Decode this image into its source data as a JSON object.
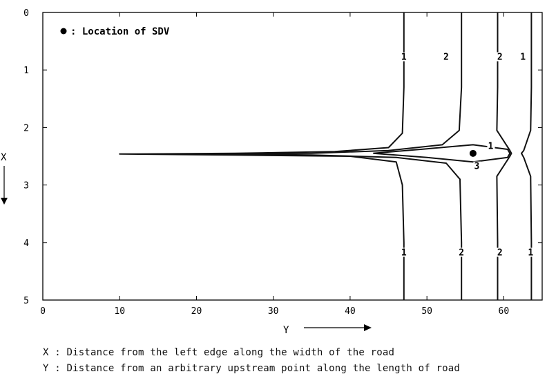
{
  "chart_data": {
    "type": "contour",
    "legend": {
      "marker": "filled-circle",
      "label": ": Location of SDV",
      "placement": "top-left"
    },
    "xlabel": "Y",
    "ylabel": "X",
    "x_ticks": [
      0,
      10,
      20,
      30,
      40,
      50,
      60
    ],
    "y_ticks": [
      0,
      1,
      2,
      3,
      4,
      5
    ],
    "xlim": [
      0,
      65
    ],
    "ylim": [
      0,
      5
    ],
    "y_axis_inverted": true,
    "sdv_location": {
      "y": 56,
      "x": 2.45
    },
    "contour_levels": [
      {
        "label": "1",
        "points": [
          [
            47,
            0
          ],
          [
            47,
            1.3
          ],
          [
            46.8,
            2.1
          ],
          [
            45,
            2.35
          ],
          [
            38,
            2.42
          ],
          [
            25,
            2.45
          ],
          [
            12,
            2.46
          ],
          [
            10,
            2.46
          ],
          [
            25,
            2.48
          ],
          [
            40,
            2.5
          ],
          [
            46,
            2.6
          ],
          [
            46.8,
            3.0
          ],
          [
            47,
            4.0
          ],
          [
            47,
            5
          ]
        ]
      },
      {
        "label": "2",
        "points": [
          [
            54.5,
            0
          ],
          [
            54.5,
            1.3
          ],
          [
            54.2,
            2.05
          ],
          [
            52,
            2.3
          ],
          [
            45,
            2.4
          ],
          [
            35,
            2.45
          ],
          [
            22,
            2.46
          ],
          [
            35,
            2.48
          ],
          [
            46,
            2.52
          ],
          [
            52.5,
            2.62
          ],
          [
            54.3,
            2.9
          ],
          [
            54.5,
            4.0
          ],
          [
            54.5,
            5
          ]
        ]
      },
      {
        "label": "3",
        "points": [
          [
            43,
            2.45
          ],
          [
            50,
            2.37
          ],
          [
            56,
            2.3
          ],
          [
            60.5,
            2.38
          ],
          [
            60.8,
            2.45
          ],
          [
            60.5,
            2.52
          ],
          [
            56,
            2.6
          ],
          [
            50,
            2.52
          ],
          [
            43,
            2.45
          ]
        ]
      },
      {
        "label": "2",
        "points": [
          [
            59.2,
            0
          ],
          [
            59.2,
            1.3
          ],
          [
            59.1,
            2.05
          ],
          [
            60.8,
            2.4
          ],
          [
            61,
            2.45
          ],
          [
            60.8,
            2.5
          ],
          [
            59.1,
            2.85
          ],
          [
            59.2,
            4.0
          ],
          [
            59.2,
            5
          ]
        ]
      },
      {
        "label": "1",
        "points": [
          [
            63.6,
            0
          ],
          [
            63.6,
            1.3
          ],
          [
            63.5,
            2.05
          ],
          [
            62.6,
            2.4
          ],
          [
            62.3,
            2.45
          ],
          [
            62.6,
            2.52
          ],
          [
            63.5,
            2.85
          ],
          [
            63.6,
            4.0
          ],
          [
            63.6,
            5
          ]
        ]
      }
    ],
    "contour_labels": [
      {
        "text": "1",
        "y": 47,
        "x": 0.8
      },
      {
        "text": "2",
        "y": 52.5,
        "x": 0.8
      },
      {
        "text": "2",
        "y": 59.5,
        "x": 0.8
      },
      {
        "text": "1",
        "y": 62.5,
        "x": 0.8
      },
      {
        "text": "1",
        "y": 58.3,
        "x": 2.35
      },
      {
        "text": "3",
        "y": 56.5,
        "x": 2.7
      },
      {
        "text": "1",
        "y": 47,
        "x": 4.2
      },
      {
        "text": "2",
        "y": 54.5,
        "x": 4.2
      },
      {
        "text": "2",
        "y": 59.5,
        "x": 4.2
      },
      {
        "text": "1",
        "y": 63.5,
        "x": 4.2
      }
    ],
    "colors": {
      "axes": "#000000",
      "contour": "#111111",
      "background": "#ffffff",
      "sdv_marker": "#000000"
    }
  },
  "captions": {
    "x_def": "X : Distance from the left edge along the width of the road",
    "y_def": "Y : Distance from an arbitrary upstream point along the length of road"
  }
}
